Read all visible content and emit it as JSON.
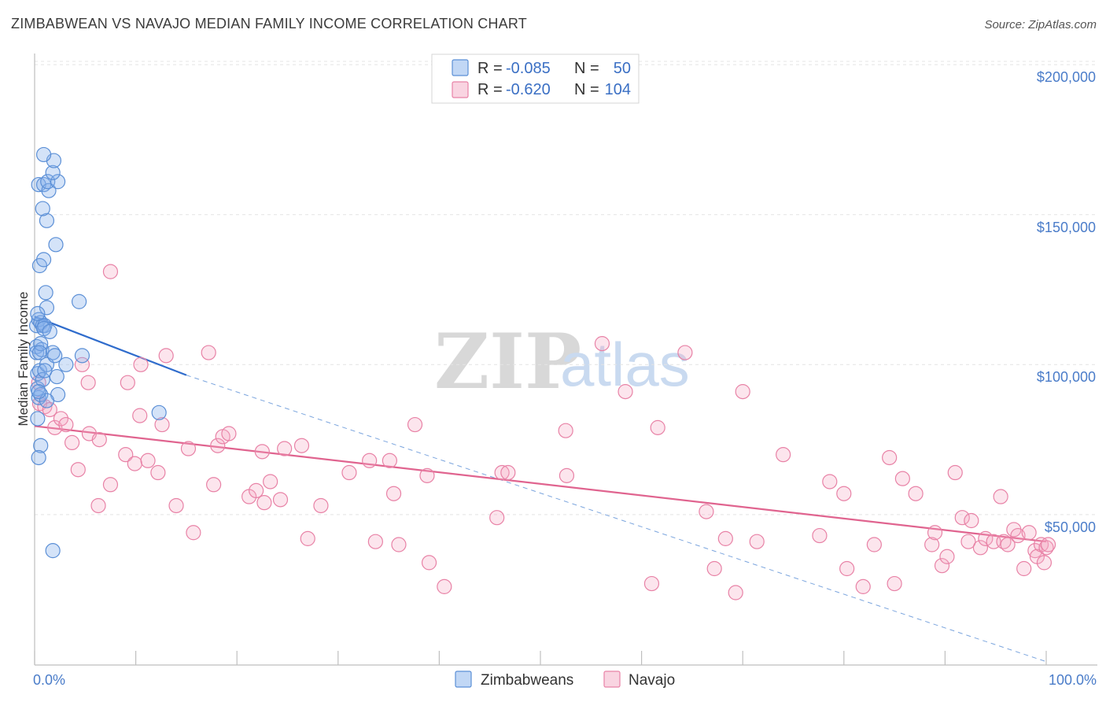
{
  "title": "ZIMBABWEAN VS NAVAJO MEDIAN FAMILY INCOME CORRELATION CHART",
  "source": "Source: ZipAtlas.com",
  "watermark": {
    "part1": "ZIP",
    "part2": "atlas"
  },
  "colors": {
    "blue": "#5b8fd6",
    "blue_fill": "rgba(132,176,235,0.35)",
    "blue_line": "#2f6ccc",
    "pink": "#e882a6",
    "pink_fill": "rgba(244,170,196,0.30)",
    "pink_line": "#e0648f",
    "grid": "#e4e4e4",
    "tick_label": "#4a7cc9"
  },
  "legend": {
    "rows": [
      {
        "r_label": "R =",
        "r_value": "-0.085",
        "n_label": "N =",
        "n_value": "50"
      },
      {
        "r_label": "R =",
        "r_value": "-0.620",
        "n_label": "N =",
        "n_value": "104"
      }
    ]
  },
  "chart_data": {
    "type": "scatter",
    "title": "ZIMBABWEAN VS NAVAJO MEDIAN FAMILY INCOME CORRELATION CHART",
    "xlabel": "",
    "ylabel": "Median Family Income",
    "xlim": [
      0,
      100
    ],
    "ylim": [
      0,
      210000
    ],
    "x_tick_labels": [
      "0.0%",
      "100.0%"
    ],
    "y_ticks": [
      50000,
      100000,
      150000,
      200000
    ],
    "y_tick_labels": [
      "$50,000",
      "$100,000",
      "$150,000",
      "$200,000"
    ],
    "grid": true,
    "legend_position": "top-center",
    "series": [
      {
        "name": "Zimbabweans",
        "r": -0.085,
        "n": 50,
        "trend": {
          "x": [
            0,
            15
          ],
          "y": [
            116000,
            96500
          ]
        },
        "trend_extension": {
          "x": [
            15,
            100
          ],
          "y": [
            96500,
            1000
          ]
        },
        "points": [
          [
            0.2,
            113000
          ],
          [
            0.3,
            97000
          ],
          [
            0.2,
            106000
          ],
          [
            0.4,
            89000
          ],
          [
            0.3,
            92000
          ],
          [
            0.2,
            104000
          ],
          [
            0.3,
            82000
          ],
          [
            0.5,
            98000
          ],
          [
            0.6,
            90000
          ],
          [
            0.7,
            105000
          ],
          [
            0.4,
            115000
          ],
          [
            0.6,
            114000
          ],
          [
            0.8,
            113000
          ],
          [
            1.0,
            113000
          ],
          [
            0.9,
            112000
          ],
          [
            1.2,
            119000
          ],
          [
            1.1,
            124000
          ],
          [
            0.5,
            133000
          ],
          [
            0.9,
            135000
          ],
          [
            2.1,
            140000
          ],
          [
            1.2,
            148000
          ],
          [
            0.8,
            152000
          ],
          [
            0.4,
            160000
          ],
          [
            0.9,
            160000
          ],
          [
            1.4,
            158000
          ],
          [
            1.3,
            161000
          ],
          [
            2.3,
            161000
          ],
          [
            1.8,
            164000
          ],
          [
            1.9,
            168000
          ],
          [
            0.9,
            170000
          ],
          [
            0.8,
            95000
          ],
          [
            1.2,
            100000
          ],
          [
            1.8,
            104000
          ],
          [
            2.0,
            103000
          ],
          [
            3.1,
            100000
          ],
          [
            2.2,
            96000
          ],
          [
            2.3,
            90000
          ],
          [
            1.2,
            88000
          ],
          [
            1.0,
            98000
          ],
          [
            0.4,
            91000
          ],
          [
            0.6,
            73000
          ],
          [
            0.4,
            69000
          ],
          [
            0.6,
            107000
          ],
          [
            4.4,
            121000
          ],
          [
            4.7,
            103000
          ],
          [
            12.3,
            84000
          ],
          [
            1.8,
            38000
          ],
          [
            0.3,
            117000
          ],
          [
            0.5,
            104000
          ],
          [
            1.5,
            111000
          ]
        ]
      },
      {
        "name": "Navajo",
        "r": -0.62,
        "n": 104,
        "trend": {
          "x": [
            0,
            100
          ],
          "y": [
            79500,
            41000
          ]
        },
        "points": [
          [
            0.4,
            94000
          ],
          [
            0.5,
            87000
          ],
          [
            1.0,
            86000
          ],
          [
            1.5,
            85000
          ],
          [
            2.0,
            79000
          ],
          [
            2.6,
            82000
          ],
          [
            3.1,
            80000
          ],
          [
            3.7,
            74000
          ],
          [
            4.3,
            65000
          ],
          [
            4.7,
            100000
          ],
          [
            5.3,
            94000
          ],
          [
            5.4,
            77000
          ],
          [
            6.4,
            75000
          ],
          [
            7.5,
            60000
          ],
          [
            6.3,
            53000
          ],
          [
            7.5,
            131000
          ],
          [
            9.0,
            70000
          ],
          [
            9.2,
            94000
          ],
          [
            9.9,
            67000
          ],
          [
            10.4,
            83000
          ],
          [
            10.5,
            100000
          ],
          [
            11.2,
            68000
          ],
          [
            12.2,
            64000
          ],
          [
            12.6,
            80000
          ],
          [
            13.0,
            103000
          ],
          [
            14.0,
            53000
          ],
          [
            15.2,
            72000
          ],
          [
            15.7,
            44000
          ],
          [
            17.2,
            104000
          ],
          [
            17.7,
            60000
          ],
          [
            18.1,
            73000
          ],
          [
            18.6,
            76000
          ],
          [
            19.2,
            77000
          ],
          [
            21.2,
            56000
          ],
          [
            21.9,
            58000
          ],
          [
            22.5,
            71000
          ],
          [
            22.7,
            54000
          ],
          [
            23.3,
            61000
          ],
          [
            24.3,
            55000
          ],
          [
            24.7,
            72000
          ],
          [
            26.4,
            73000
          ],
          [
            27.0,
            42000
          ],
          [
            28.3,
            53000
          ],
          [
            31.1,
            64000
          ],
          [
            33.1,
            68000
          ],
          [
            33.7,
            41000
          ],
          [
            35.1,
            68000
          ],
          [
            35.5,
            57000
          ],
          [
            36.0,
            40000
          ],
          [
            37.6,
            80000
          ],
          [
            38.8,
            63000
          ],
          [
            39.0,
            34000
          ],
          [
            40.5,
            26000
          ],
          [
            45.7,
            49000
          ],
          [
            46.2,
            64000
          ],
          [
            46.8,
            64000
          ],
          [
            52.5,
            78000
          ],
          [
            52.6,
            63000
          ],
          [
            56.1,
            107000
          ],
          [
            58.4,
            91000
          ],
          [
            61.0,
            27000
          ],
          [
            61.6,
            79000
          ],
          [
            64.3,
            104000
          ],
          [
            66.4,
            51000
          ],
          [
            67.2,
            32000
          ],
          [
            68.3,
            42000
          ],
          [
            69.3,
            24000
          ],
          [
            70.0,
            91000
          ],
          [
            71.4,
            41000
          ],
          [
            74.0,
            70000
          ],
          [
            77.6,
            43000
          ],
          [
            78.6,
            61000
          ],
          [
            80.0,
            57000
          ],
          [
            80.3,
            32000
          ],
          [
            81.9,
            26000
          ],
          [
            83.0,
            40000
          ],
          [
            84.5,
            69000
          ],
          [
            85.0,
            27000
          ],
          [
            85.8,
            62000
          ],
          [
            87.1,
            57000
          ],
          [
            88.7,
            40000
          ],
          [
            89.0,
            44000
          ],
          [
            89.7,
            33000
          ],
          [
            90.2,
            36000
          ],
          [
            91.0,
            64000
          ],
          [
            91.7,
            49000
          ],
          [
            92.3,
            41000
          ],
          [
            92.6,
            48000
          ],
          [
            93.5,
            39000
          ],
          [
            94.0,
            42000
          ],
          [
            94.8,
            41000
          ],
          [
            95.5,
            56000
          ],
          [
            95.8,
            41000
          ],
          [
            96.2,
            40000
          ],
          [
            96.8,
            45000
          ],
          [
            97.2,
            43000
          ],
          [
            97.8,
            32000
          ],
          [
            98.3,
            44000
          ],
          [
            98.9,
            38000
          ],
          [
            99.1,
            36000
          ],
          [
            99.5,
            40000
          ],
          [
            99.8,
            34000
          ],
          [
            100.0,
            39000
          ],
          [
            100.2,
            40000
          ]
        ]
      }
    ]
  }
}
